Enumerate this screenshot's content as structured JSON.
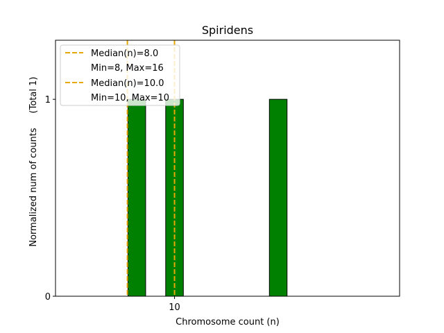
{
  "chart_data": {
    "type": "bar",
    "title": "Spiridens",
    "xlabel": "Chromosome count (n)",
    "ylabel": "Normalized num of counts",
    "ylabel_suffix": "(Total 1)",
    "xlim": [
      4.95,
      19.55
    ],
    "ylim": [
      0,
      1.3
    ],
    "xticks": [
      10
    ],
    "yticks": [
      0,
      1
    ],
    "bar_width": 0.75,
    "bar_color": "#008000",
    "bars": [
      {
        "x": 8.4,
        "value": 1
      },
      {
        "x": 10.0,
        "value": 1
      },
      {
        "x": 14.4,
        "value": 1
      }
    ],
    "median_lines": [
      {
        "x": 8.0,
        "color": "#e6a800"
      },
      {
        "x": 10.0,
        "color": "#e6a800"
      }
    ],
    "legend": {
      "placement": "top-left",
      "entries": [
        {
          "label": "Median(n)=8.0",
          "detail": "Min=8, Max=16"
        },
        {
          "label": "Median(n)=10.0",
          "detail": "Min=10, Max=10"
        }
      ]
    }
  }
}
